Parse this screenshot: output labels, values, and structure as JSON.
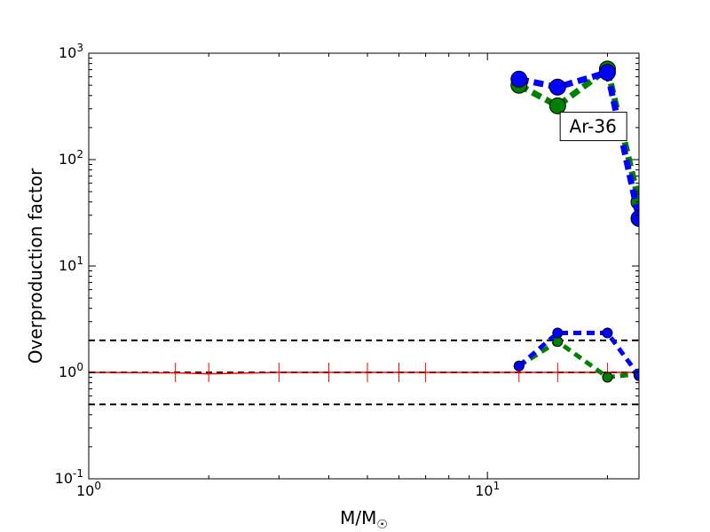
{
  "chart_data": {
    "type": "line",
    "xscale": "log",
    "yscale": "log",
    "xlim": [
      1,
      24
    ],
    "ylim": [
      0.1,
      1000
    ],
    "xlabel": {
      "base": "M/M",
      "subscript": "☉"
    },
    "ylabel": "Overproduction factor",
    "x_ticks": [
      {
        "value": 1,
        "base": "10",
        "exp": "0"
      },
      {
        "value": 10,
        "base": "10",
        "exp": "1"
      }
    ],
    "y_ticks": [
      {
        "value": 0.1,
        "base": "10",
        "exp": "-1"
      },
      {
        "value": 1,
        "base": "10",
        "exp": "0"
      },
      {
        "value": 10,
        "base": "10",
        "exp": "1"
      },
      {
        "value": 100,
        "base": "10",
        "exp": "2"
      },
      {
        "value": 1000,
        "base": "10",
        "exp": "3"
      }
    ],
    "reference_lines": [
      0.5,
      1.0,
      2.0
    ],
    "annotation": {
      "text": "Ar-36",
      "x": 18.4,
      "y": 205
    },
    "reference_series": {
      "color": "#ff0000",
      "x": [
        1,
        1.65,
        2,
        3,
        4,
        5,
        6,
        7,
        12,
        15,
        20,
        24
      ],
      "y": [
        1.0,
        0.99,
        0.97,
        1.0,
        1.0,
        1.0,
        1.0,
        1.0,
        1.0,
        1.0,
        1.0,
        1.0
      ],
      "error_bar_x": [
        1.65,
        2,
        3,
        4,
        5,
        6,
        7,
        12,
        15,
        20
      ]
    },
    "series": [
      {
        "color": "#008000",
        "marker": "large",
        "x": [
          12,
          15,
          20,
          24
        ],
        "y": [
          500,
          320,
          710,
          40
        ]
      },
      {
        "color": "#0000ff",
        "marker": "large",
        "x": [
          12,
          15,
          20,
          24
        ],
        "y": [
          570,
          480,
          660,
          28
        ]
      },
      {
        "color": "#008000",
        "marker": "small",
        "x": [
          12,
          15,
          20,
          24
        ],
        "y": [
          1.15,
          1.95,
          0.9,
          0.97
        ]
      },
      {
        "color": "#0000ff",
        "marker": "small",
        "x": [
          12,
          15,
          20,
          24
        ],
        "y": [
          1.15,
          2.35,
          2.35,
          0.93
        ]
      }
    ]
  }
}
